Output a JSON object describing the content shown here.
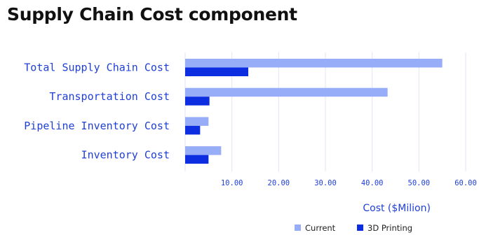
{
  "title": "Supply Chain Cost component",
  "chart_data": {
    "type": "bar",
    "orientation": "horizontal",
    "categories": [
      "Total Supply Chain Cost",
      "Transportation Cost",
      "Pipeline Inventory Cost",
      "Inventory Cost"
    ],
    "series": [
      {
        "name": "Current",
        "values": [
          55.0,
          43.3,
          5.0,
          7.7
        ],
        "color": "#98adf8"
      },
      {
        "name": "3D Printing",
        "values": [
          13.5,
          5.2,
          3.2,
          5.0
        ],
        "color": "#0d2ee0"
      }
    ],
    "xlabel": "Cost ($Milion)",
    "xlim": [
      0,
      60
    ],
    "xticks": [
      "10.00",
      "20.00",
      "30.00",
      "40.00",
      "50.00",
      "60.00"
    ],
    "grid": "vertical",
    "legend_position": "bottom-right"
  }
}
